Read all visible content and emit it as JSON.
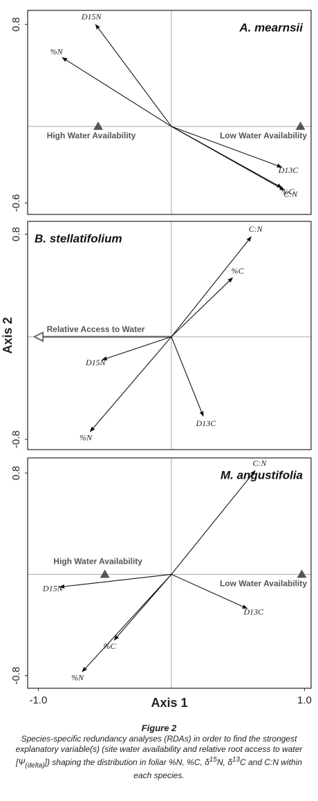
{
  "chart_data": [
    {
      "type": "biplot",
      "title": "A. mearnsii",
      "xlim": [
        -1.08,
        1.05
      ],
      "ylim": [
        -0.69,
        0.91
      ],
      "yticks": [
        -0.6,
        0.8
      ],
      "vectors": [
        {
          "name": "D15N",
          "x": -0.57,
          "y": 0.8
        },
        {
          "name": "%N",
          "x": -0.82,
          "y": 0.54
        },
        {
          "name": "D13C",
          "x": 0.83,
          "y": -0.32
        },
        {
          "name": "%C",
          "x": 0.83,
          "y": -0.48
        },
        {
          "name": "C:N",
          "x": 0.85,
          "y": -0.5
        }
      ],
      "sites": [
        {
          "name": "High Water Availability",
          "x": -0.55,
          "y": 0
        },
        {
          "name": "Low Water Availability",
          "x": 0.97,
          "y": 0
        }
      ]
    },
    {
      "type": "biplot",
      "title": "B. stellatifolium",
      "y_label": "Axis 2",
      "xlim": [
        -1.08,
        1.05
      ],
      "ylim": [
        -0.88,
        0.9
      ],
      "yticks": [
        -0.8,
        0.8
      ],
      "vectors": [
        {
          "name": "C:N",
          "x": 0.6,
          "y": 0.78
        },
        {
          "name": "%C",
          "x": 0.46,
          "y": 0.46
        },
        {
          "name": "D15N",
          "x": -0.52,
          "y": -0.18
        },
        {
          "name": "%N",
          "x": -0.61,
          "y": -0.74
        },
        {
          "name": "D13C",
          "x": 0.24,
          "y": -0.62
        }
      ],
      "env_vectors": [
        {
          "name": "Relative Access to Water",
          "x": -1.03,
          "y": 0
        }
      ]
    },
    {
      "type": "biplot",
      "title": "M. angustifolia",
      "x_label": "Axis 1",
      "xlim": [
        -1.08,
        1.05
      ],
      "ylim": [
        -0.9,
        0.92
      ],
      "yticks": [
        -0.8,
        0.8
      ],
      "xticks": [
        {
          "value": -1.0,
          "label": "-1.0"
        },
        {
          "value": 1.0,
          "label": "1.0"
        }
      ],
      "vectors": [
        {
          "name": "C:N",
          "x": 0.63,
          "y": 0.82
        },
        {
          "name": "D15N",
          "x": -0.84,
          "y": -0.1
        },
        {
          "name": "D13C",
          "x": 0.57,
          "y": -0.27
        },
        {
          "name": "%C",
          "x": -0.43,
          "y": -0.52
        },
        {
          "name": "%N",
          "x": -0.67,
          "y": -0.77
        }
      ],
      "sites": [
        {
          "name": "High Water Availability",
          "x": -0.5,
          "y": 0
        },
        {
          "name": "Low Water Availability",
          "x": 0.98,
          "y": 0
        }
      ]
    }
  ],
  "caption": {
    "title": "Figure 2",
    "parts": [
      "Species-specific redundancy analyses (RDAs) in order to find the strongest explanatory variable(s) (site water availability and relative root access to water [Ψ",
      "(delta)",
      "]) shaping the distribution in foliar %N, %C, δ",
      "15",
      "N, δ",
      "13",
      "C and C:N within each species."
    ]
  }
}
